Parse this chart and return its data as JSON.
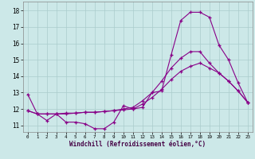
{
  "background_color": "#cce8e8",
  "line_color": "#880088",
  "grid_color": "#aacccc",
  "spine_color": "#888888",
  "xlabel": "Windchill (Refroidissement éolien,°C)",
  "xlabel_color": "#440044",
  "xlim_min": -0.5,
  "xlim_max": 23.5,
  "ylim_min": 10.6,
  "ylim_max": 18.55,
  "ytick_values": [
    11,
    12,
    13,
    14,
    15,
    16,
    17,
    18
  ],
  "xtick_values": [
    0,
    1,
    2,
    3,
    4,
    5,
    6,
    7,
    8,
    9,
    10,
    11,
    12,
    13,
    14,
    15,
    16,
    17,
    18,
    19,
    20,
    21,
    22,
    23
  ],
  "s1": [
    12.9,
    11.7,
    11.3,
    11.7,
    11.2,
    11.2,
    11.1,
    10.8,
    10.8,
    11.2,
    12.2,
    12.0,
    12.1,
    13.0,
    13.1,
    15.3,
    17.4,
    17.9,
    17.9,
    17.6,
    15.9,
    15.0,
    13.6,
    12.4
  ],
  "s2": [
    11.9,
    11.7,
    11.7,
    11.7,
    11.7,
    11.75,
    11.8,
    11.8,
    11.85,
    11.9,
    11.95,
    12.0,
    12.3,
    12.7,
    13.2,
    13.8,
    14.3,
    14.6,
    14.8,
    14.5,
    14.2,
    13.7,
    13.1,
    12.4
  ],
  "s3": [
    11.9,
    11.7,
    11.7,
    11.7,
    11.75,
    11.75,
    11.8,
    11.8,
    11.85,
    11.9,
    12.0,
    12.1,
    12.5,
    13.0,
    13.7,
    14.5,
    15.1,
    15.5,
    15.5,
    14.8,
    14.2,
    13.7,
    13.1,
    12.4
  ]
}
